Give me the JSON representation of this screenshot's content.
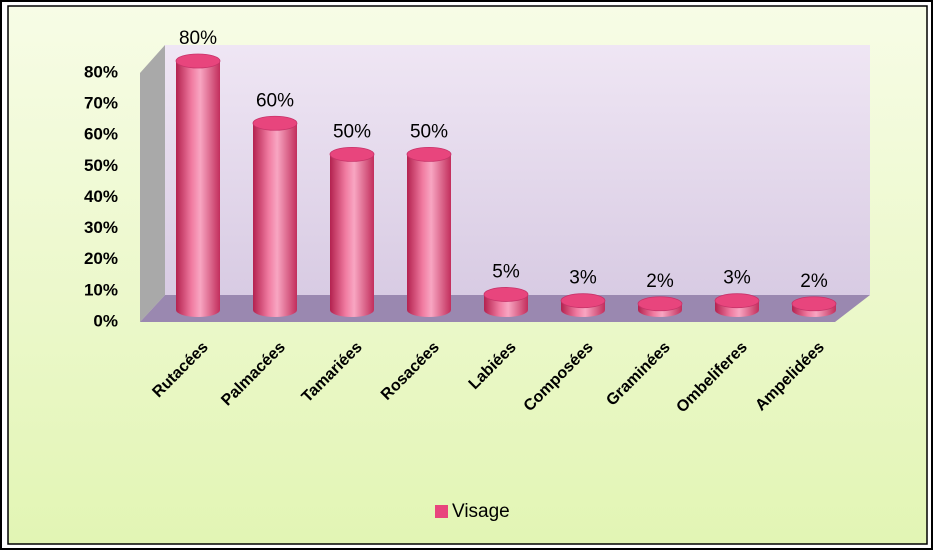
{
  "chart_data": {
    "type": "bar3d",
    "categories": [
      "Rutacées",
      "Palmacées",
      "Tamariées",
      "Rosacées",
      "Labiées",
      "Composées",
      "Graminées",
      "Ombeliferes",
      "Ampelidées"
    ],
    "series": [
      {
        "name": "Visage",
        "color": "#e8457d",
        "values": [
          80,
          60,
          50,
          50,
          5,
          3,
          2,
          3,
          2
        ],
        "value_labels": [
          "80%",
          "60%",
          "50%",
          "50%",
          "5%",
          "3%",
          "2%",
          "3%",
          "2%"
        ]
      }
    ],
    "ylim": [
      0,
      80
    ],
    "yticks": [
      {
        "value": 0,
        "label": "0%"
      },
      {
        "value": 10,
        "label": "10%"
      },
      {
        "value": 20,
        "label": "20%"
      },
      {
        "value": 30,
        "label": "30%"
      },
      {
        "value": 40,
        "label": "40%"
      },
      {
        "value": 50,
        "label": "50%"
      },
      {
        "value": 60,
        "label": "60%"
      },
      {
        "value": 70,
        "label": "70%"
      },
      {
        "value": 80,
        "label": "80%"
      }
    ],
    "legend": "bottom"
  }
}
